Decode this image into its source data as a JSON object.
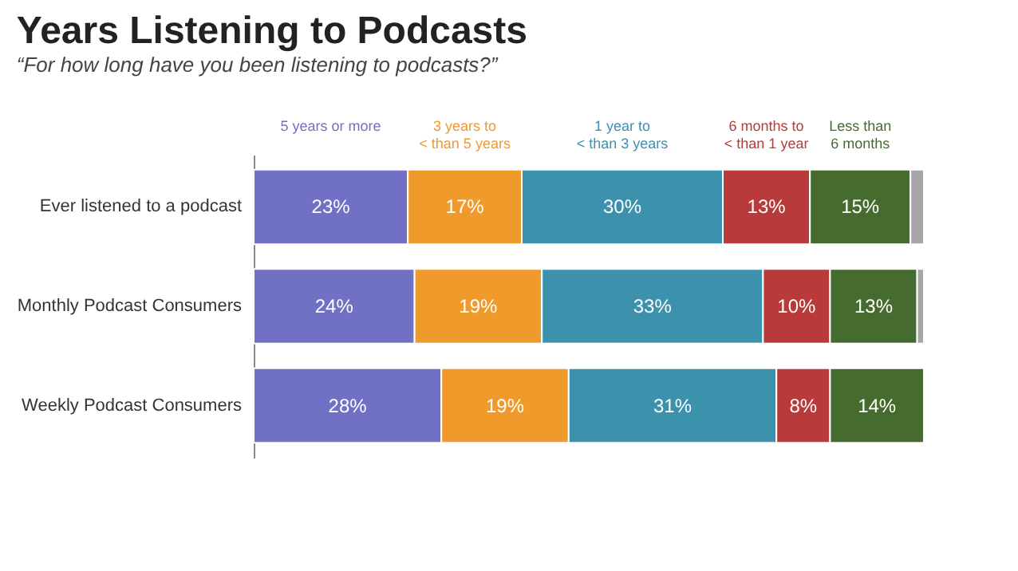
{
  "chart_data": {
    "type": "bar",
    "orientation": "horizontal",
    "stacked": true,
    "title": "Years Listening to Podcasts",
    "subtitle": "“For how long have you been listening to podcasts?”",
    "categories": [
      "Ever listened to a podcast",
      "Monthly Podcast Consumers",
      "Weekly Podcast Consumers"
    ],
    "series": [
      {
        "name": "5 years or more",
        "color": "#7070c4",
        "values": [
          23,
          24,
          28
        ],
        "value_labels": [
          "23%",
          "24%",
          "28%"
        ]
      },
      {
        "name": "3 years to\n< than 5 years",
        "color": "#f09a2c",
        "values": [
          17,
          19,
          19
        ],
        "value_labels": [
          "17%",
          "19%",
          "19%"
        ]
      },
      {
        "name": "1 year to\n< than 3 years",
        "color": "#3c91ad",
        "values": [
          30,
          33,
          31
        ],
        "value_labels": [
          "30%",
          "33%",
          "31%"
        ]
      },
      {
        "name": "6 months to\n< than 1 year",
        "color": "#b83a3a",
        "values": [
          13,
          10,
          8
        ],
        "value_labels": [
          "13%",
          "10%",
          "8%"
        ]
      },
      {
        "name": "Less than\n6 months",
        "color": "#466b2e",
        "values": [
          15,
          13,
          14
        ],
        "value_labels": [
          "15%",
          "13%",
          "14%"
        ]
      },
      {
        "color": "#a6a6a6",
        "values": [
          2,
          1,
          null
        ],
        "value_labels": [
          null,
          null,
          null
        ]
      }
    ],
    "legend": "top"
  }
}
